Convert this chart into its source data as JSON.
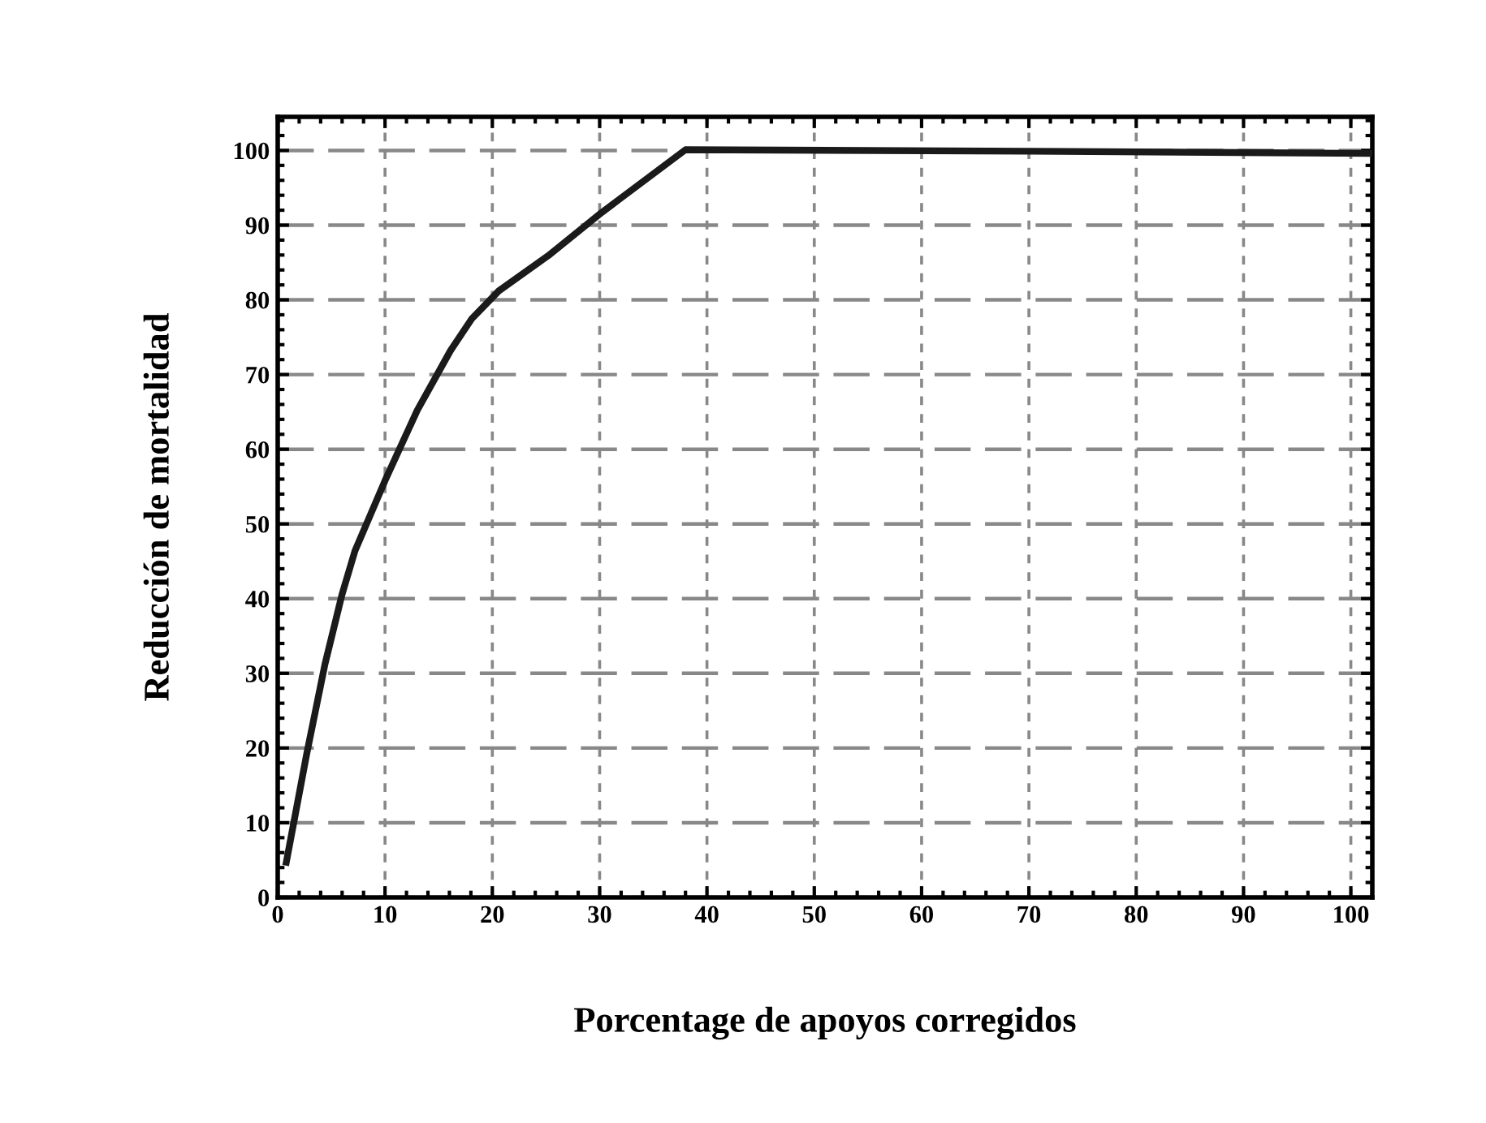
{
  "chart_data": {
    "type": "line",
    "xlabel": "Porcentage de apoyos corregidos",
    "ylabel": "Reducción de mortalidad",
    "xlim": [
      0,
      102
    ],
    "ylim": [
      0,
      104.5
    ],
    "xticks": [
      0,
      10,
      20,
      30,
      40,
      50,
      60,
      70,
      80,
      90,
      100
    ],
    "yticks": [
      0,
      10,
      20,
      30,
      40,
      50,
      60,
      70,
      80,
      90,
      100
    ],
    "grid": true,
    "marker": "none",
    "line_style": "solid",
    "series": [
      {
        "color": "#1a1a1a",
        "x": [
          0.8,
          2.7,
          4.4,
          6.0,
          7.2,
          10.0,
          13.0,
          16.1,
          18.1,
          20.6,
          25.2,
          30.2,
          38.0,
          70.0,
          102.0
        ],
        "values": [
          4.7,
          19.2,
          31.2,
          40.6,
          46.4,
          55.8,
          65.2,
          73.2,
          77.5,
          81.2,
          85.9,
          91.7,
          100.1,
          99.9,
          99.6
        ]
      }
    ]
  }
}
